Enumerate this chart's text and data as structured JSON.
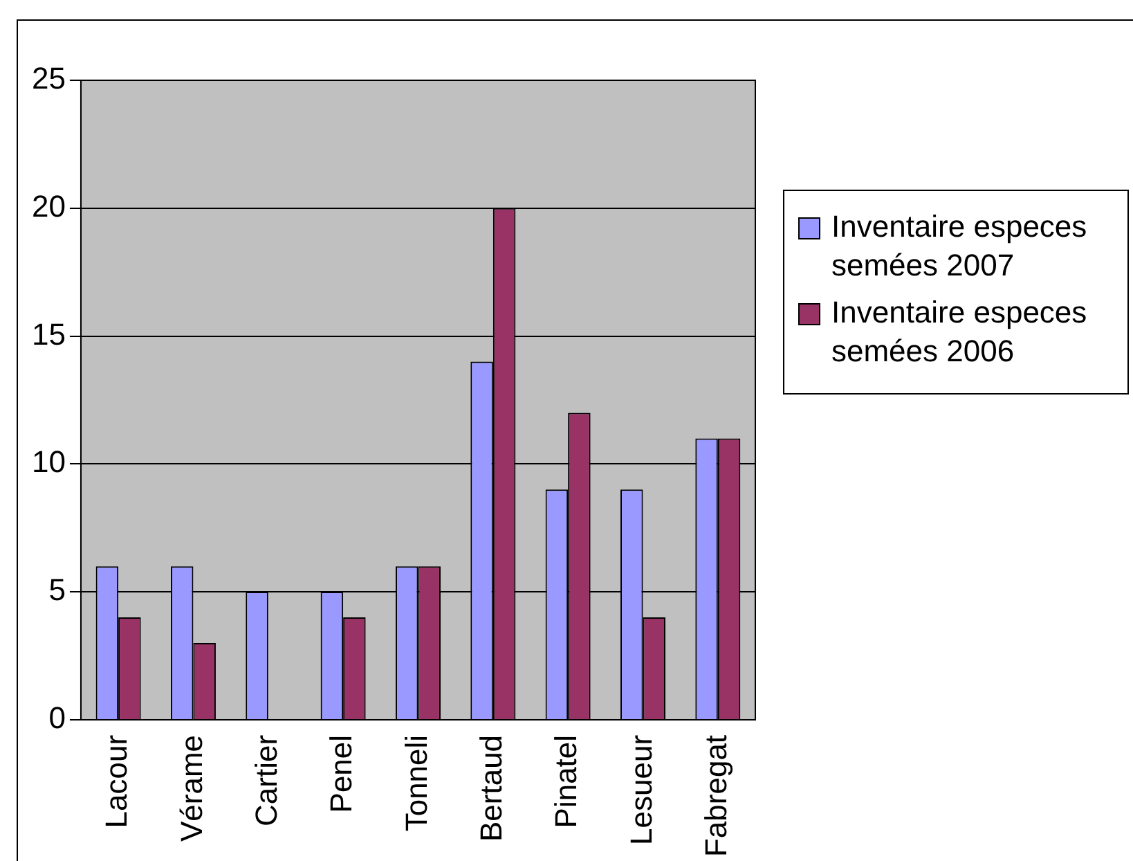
{
  "chart_data": {
    "type": "bar",
    "categories": [
      "Lacour",
      "Vérame",
      "Cartier",
      "Penel",
      "Tonneli",
      "Bertaud",
      "Pinatel",
      "Lesueur",
      "Fabregat"
    ],
    "series": [
      {
        "name": "Inventaire especes semées 2007",
        "color": "#9999ff",
        "values": [
          6,
          6,
          5,
          5,
          6,
          14,
          9,
          9,
          11
        ]
      },
      {
        "name": "Inventaire especes semées 2006",
        "color": "#993366",
        "values": [
          4,
          3,
          0,
          4,
          6,
          20,
          12,
          4,
          11
        ]
      }
    ],
    "ylim": [
      0,
      25
    ],
    "yticks": [
      0,
      5,
      10,
      15,
      20,
      25
    ],
    "grid": "y",
    "legend": "right"
  }
}
